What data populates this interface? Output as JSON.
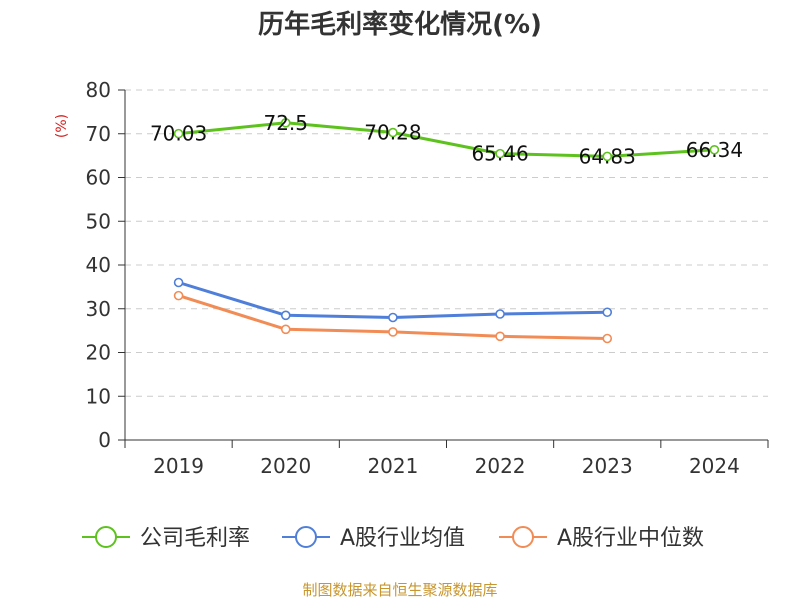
{
  "chart_data": {
    "type": "line",
    "title": "历年毛利率变化情况(%)",
    "ylabel": "(%)",
    "xlabel": "",
    "categories": [
      "2019",
      "2020",
      "2021",
      "2022",
      "2023",
      "2024"
    ],
    "ylim": [
      0,
      80
    ],
    "yticks": [
      "0",
      "10",
      "20",
      "30",
      "40",
      "50",
      "60",
      "70",
      "80"
    ],
    "grid": true,
    "legend_position": "bottom",
    "series": [
      {
        "name": "公司毛利率",
        "color": "#5ec21e",
        "values": [
          70.03,
          72.5,
          70.28,
          65.46,
          64.83,
          66.34
        ],
        "labels": [
          "70.03",
          "72.5",
          "70.28",
          "65.46",
          "64.83",
          "66.34"
        ]
      },
      {
        "name": "A股行业均值",
        "color": "#4f7fd9",
        "values": [
          36.0,
          28.5,
          28.0,
          28.8,
          29.2,
          null
        ]
      },
      {
        "name": "A股行业中位数",
        "color": "#f28c56",
        "values": [
          33.0,
          25.3,
          24.7,
          23.7,
          23.2,
          null
        ]
      }
    ]
  },
  "footer": {
    "source": "制图数据来自恒生聚源数据库"
  }
}
